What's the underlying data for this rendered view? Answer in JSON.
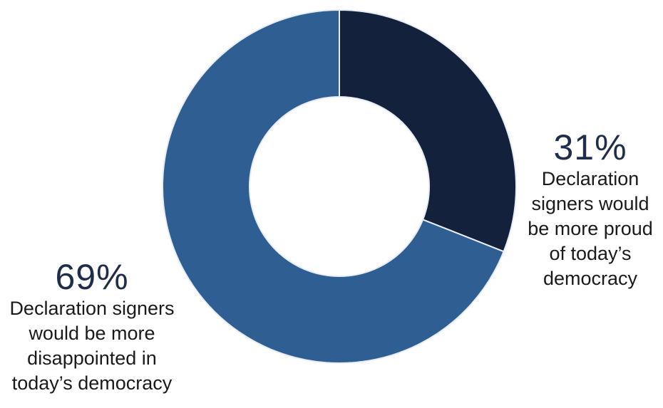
{
  "chart_data": {
    "type": "pie",
    "donut": true,
    "slices": [
      {
        "value": 31,
        "percent_label": "31%",
        "label": "Declaration signers would be more proud of today’s democracy",
        "label_lines": [
          "Declaration",
          "signers would",
          "be more proud",
          "of today’s",
          "democracy"
        ],
        "color": "#14213d"
      },
      {
        "value": 69,
        "percent_label": "69%",
        "label": "Declaration signers would be more disappointed in today’s democracy",
        "label_lines": [
          "Declaration signers",
          "would be more",
          "disappointed in",
          "today’s democracy"
        ],
        "color": "#2f5e93"
      }
    ],
    "legend": "none",
    "start": "top",
    "direction": "clockwise"
  }
}
